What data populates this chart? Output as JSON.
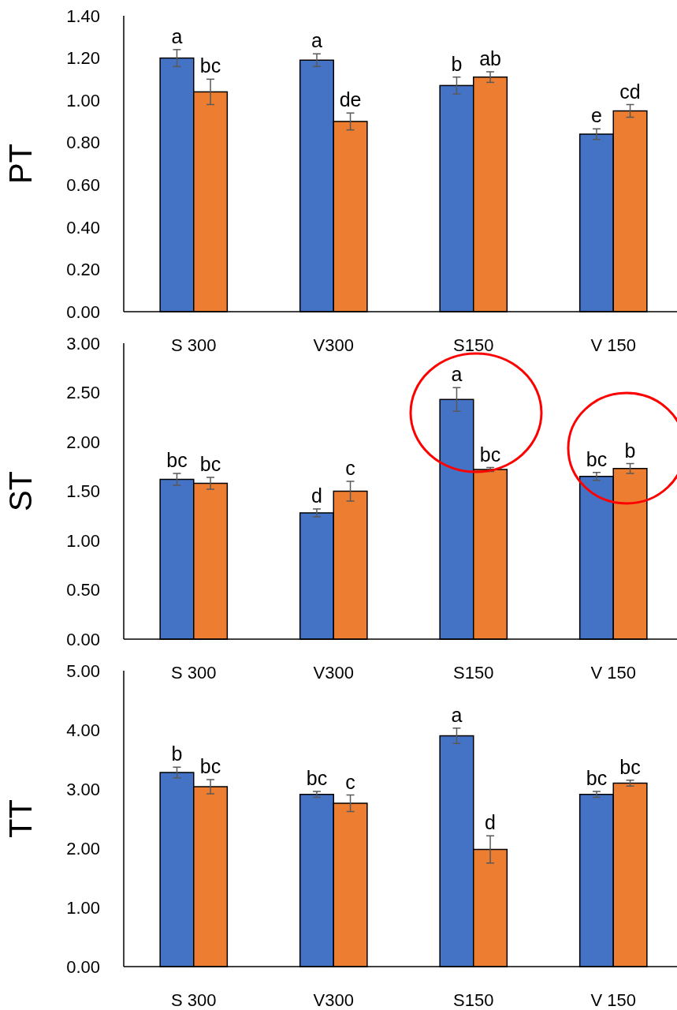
{
  "chart_data": [
    {
      "type": "bar",
      "ylabel": "PT",
      "categories": [
        "S 300",
        "V300",
        "S150",
        "V 150"
      ],
      "ylim": [
        0,
        1.4
      ],
      "yticks": [
        {
          "value": 0,
          "label": "0.00"
        },
        {
          "value": 0.2,
          "label": "0.20"
        },
        {
          "value": 0.4,
          "label": "0.40"
        },
        {
          "value": 0.6,
          "label": "0.60"
        },
        {
          "value": 0.8,
          "label": "0.80"
        },
        {
          "value": 1,
          "label": "1.00"
        },
        {
          "value": 1.2,
          "label": "1.20"
        },
        {
          "value": 1.4,
          "label": "1.40"
        }
      ],
      "grid": false,
      "series": [
        {
          "color": "#4472c4",
          "values": [
            1.2,
            1.19,
            1.07,
            0.84
          ],
          "errors": [
            0.04,
            0.03,
            0.04,
            0.025
          ],
          "value_labels": [
            "a",
            "a",
            "b",
            "e"
          ]
        },
        {
          "color": "#ed7d31",
          "values": [
            1.04,
            0.9,
            1.11,
            0.95
          ],
          "errors": [
            0.06,
            0.04,
            0.025,
            0.03
          ],
          "value_labels": [
            "bc",
            "de",
            "ab",
            "cd"
          ]
        }
      ]
    },
    {
      "type": "bar",
      "ylabel": "ST",
      "categories": [
        "S 300",
        "V300",
        "S150",
        "V 150"
      ],
      "ylim": [
        0,
        3
      ],
      "yticks": [
        {
          "value": 0,
          "label": "0.00"
        },
        {
          "value": 0.5,
          "label": "0.50"
        },
        {
          "value": 1,
          "label": "1.00"
        },
        {
          "value": 1.5,
          "label": "1.50"
        },
        {
          "value": 2,
          "label": "2.00"
        },
        {
          "value": 2.5,
          "label": "2.50"
        },
        {
          "value": 3,
          "label": "3.00"
        }
      ],
      "grid": false,
      "series": [
        {
          "color": "#4472c4",
          "values": [
            1.62,
            1.28,
            2.43,
            1.65
          ],
          "errors": [
            0.06,
            0.04,
            0.12,
            0.04
          ],
          "value_labels": [
            "bc",
            "d",
            "a",
            "bc"
          ]
        },
        {
          "color": "#ed7d31",
          "values": [
            1.58,
            1.5,
            1.72,
            1.73
          ],
          "errors": [
            0.06,
            0.1,
            0.02,
            0.05
          ],
          "value_labels": [
            "bc",
            "c",
            "bc",
            "b"
          ]
        }
      ]
    },
    {
      "type": "bar",
      "ylabel": "TT",
      "categories": [
        "S 300",
        "V300",
        "S150",
        "V 150"
      ],
      "ylim": [
        0,
        5
      ],
      "yticks": [
        {
          "value": 0,
          "label": "0.00"
        },
        {
          "value": 1,
          "label": "1.00"
        },
        {
          "value": 2,
          "label": "2.00"
        },
        {
          "value": 3,
          "label": "3.00"
        },
        {
          "value": 4,
          "label": "4.00"
        },
        {
          "value": 5,
          "label": "5.00"
        }
      ],
      "grid": false,
      "series": [
        {
          "color": "#4472c4",
          "values": [
            3.28,
            2.91,
            3.9,
            2.91
          ],
          "errors": [
            0.09,
            0.05,
            0.13,
            0.05
          ],
          "value_labels": [
            "b",
            "bc",
            "a",
            "bc"
          ]
        },
        {
          "color": "#ed7d31",
          "values": [
            3.04,
            2.76,
            1.98,
            3.1
          ],
          "errors": [
            0.12,
            0.14,
            0.23,
            0.05
          ],
          "value_labels": [
            "bc",
            "c",
            "d",
            "bc"
          ]
        }
      ]
    }
  ]
}
